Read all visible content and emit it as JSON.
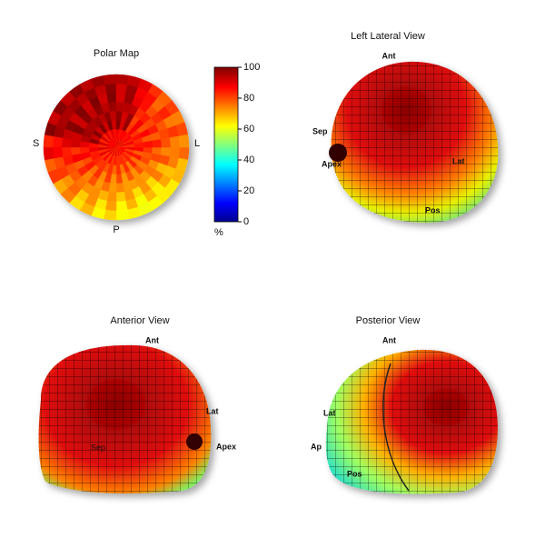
{
  "panels": [
    {
      "title": "Polar Map",
      "labels": [
        "S",
        "L",
        "P"
      ]
    },
    {
      "title": "Left Lateral View",
      "labels": [
        "Ant",
        "Sep",
        "Apex",
        "Lat",
        "Pos"
      ]
    },
    {
      "title": "Anterior View",
      "labels": [
        "Ant",
        "Lat",
        "Apex",
        "Sep"
      ]
    },
    {
      "title": "Posterior View",
      "labels": [
        "Ant",
        "Lat",
        "Ap",
        "Pos"
      ]
    }
  ],
  "colorbar": {
    "range": [
      0,
      100
    ],
    "ticks": [
      0,
      20,
      40,
      60,
      80,
      100
    ],
    "unit": "%"
  }
}
